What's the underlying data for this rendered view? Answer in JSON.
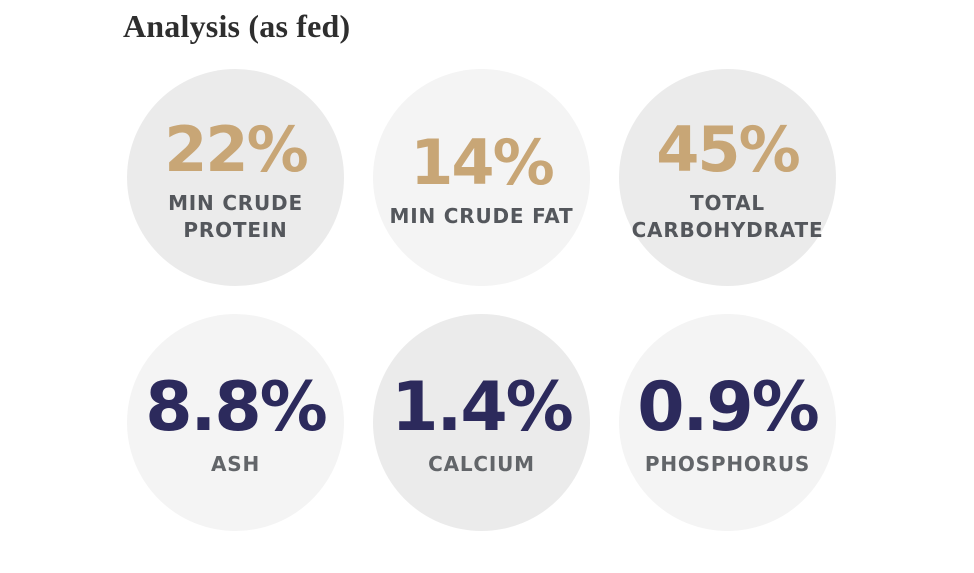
{
  "page": {
    "title": "Analysis (as fed)"
  },
  "colors": {
    "title": "#2e2e2e",
    "gold": "#c8a676",
    "navy": "#2c2a5c",
    "circle_dark": "#ebebeb",
    "circle_light": "#f4f4f4",
    "label_top": "#54575c",
    "label_bottom": "#626569",
    "background": "#ffffff"
  },
  "stats": [
    {
      "value": "22%",
      "label": "MIN CRUDE PROTEIN"
    },
    {
      "value": "14%",
      "label": "MIN CRUDE FAT"
    },
    {
      "value": "45%",
      "label": "TOTAL CARBOHYDRATE"
    },
    {
      "value": "8.8%",
      "label": "ASH"
    },
    {
      "value": "1.4%",
      "label": "CALCIUM"
    },
    {
      "value": "0.9%",
      "label": "PHOSPHORUS"
    }
  ]
}
